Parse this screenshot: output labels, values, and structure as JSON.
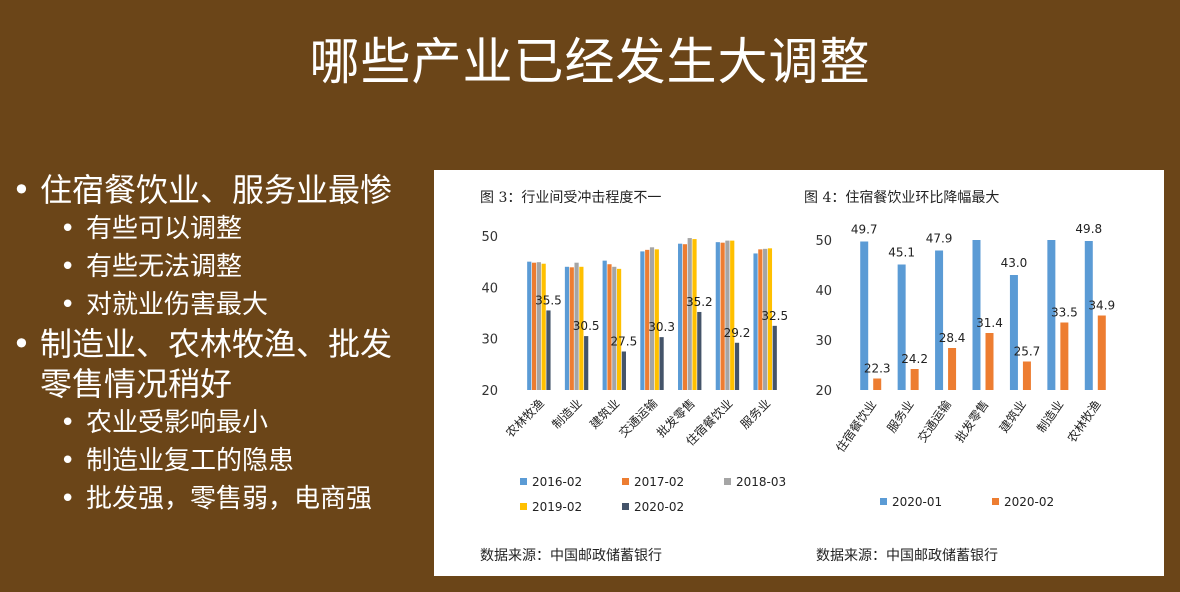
{
  "slide": {
    "title": "哪些产业已经发生大调整",
    "bullets": [
      {
        "text": "住宿餐饮业、服务业最惨",
        "sub": [
          "有些可以调整",
          "有些无法调整",
          "对就业伤害最大"
        ]
      },
      {
        "text": "制造业、农林牧渔、批发零售情况稍好",
        "sub": [
          "农业受影响最小",
          "制造业复工的隐患",
          "批发强，零售弱，电商强"
        ]
      }
    ]
  },
  "chart_data": [
    {
      "type": "bar",
      "title": "图 3：行业间受冲击程度不一",
      "source": "数据来源：中国邮政储蓄银行",
      "categories": [
        "农林牧渔",
        "制造业",
        "建筑业",
        "交通运输",
        "批发零售",
        "住宿餐饮业",
        "服务业"
      ],
      "ylim": [
        20,
        50
      ],
      "yticks": [
        20,
        30,
        40,
        50
      ],
      "series": [
        {
          "name": "2016-02",
          "color": "#5b9bd5",
          "values": [
            45.0,
            44.0,
            45.2,
            47.0,
            48.5,
            48.8,
            46.6
          ]
        },
        {
          "name": "2017-02",
          "color": "#ed7d31",
          "values": [
            44.8,
            43.9,
            44.5,
            47.3,
            48.4,
            48.7,
            47.4
          ]
        },
        {
          "name": "2018-03",
          "color": "#a5a5a5",
          "values": [
            44.9,
            44.8,
            44.0,
            47.8,
            49.6,
            49.1,
            47.5
          ]
        },
        {
          "name": "2019-02",
          "color": "#ffc000",
          "values": [
            44.6,
            44.0,
            43.6,
            47.4,
            49.4,
            49.1,
            47.6
          ]
        },
        {
          "name": "2020-02",
          "color": "#44546a",
          "values": [
            35.5,
            30.5,
            27.5,
            30.3,
            35.2,
            29.2,
            32.5
          ]
        }
      ],
      "data_labels": [
        "35.5",
        "30.5",
        "27.5",
        "30.3",
        "35.2",
        "29.2",
        "32.5"
      ]
    },
    {
      "type": "bar",
      "title": "图 4：住宿餐饮业环比降幅最大",
      "source": "数据来源：中国邮政储蓄银行",
      "categories": [
        "住宿餐饮业",
        "服务业",
        "交通运输",
        "批发零售",
        "建筑业",
        "制造业",
        "农林牧渔"
      ],
      "ylim": [
        20,
        50
      ],
      "yticks": [
        20,
        30,
        40,
        50
      ],
      "series": [
        {
          "name": "2020-01",
          "color": "#5b9bd5",
          "values": [
            49.7,
            45.1,
            47.9,
            50.0,
            43.0,
            50.0,
            49.8
          ]
        },
        {
          "name": "2020-02",
          "color": "#ed7d31",
          "values": [
            22.3,
            24.2,
            28.4,
            31.4,
            25.7,
            33.5,
            34.9
          ]
        }
      ],
      "data_labels_s1": [
        "49.7",
        "45.1",
        "47.9",
        "",
        "43.0",
        "",
        "49.8"
      ],
      "data_labels_s2": [
        "22.3",
        "24.2",
        "28.4",
        "31.4",
        "25.7",
        "33.5",
        "34.9"
      ]
    }
  ]
}
